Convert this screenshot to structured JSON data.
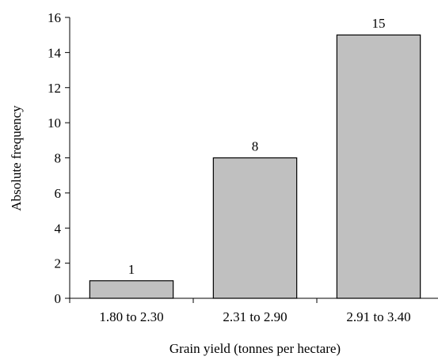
{
  "chart_data": {
    "type": "bar",
    "title": "",
    "xlabel": "Grain yield (tonnes per hectare)",
    "ylabel": "Absolute frequency",
    "categories": [
      "1.80 to 2.30",
      "2.31 to 2.90",
      "2.91 to 3.40"
    ],
    "values": [
      1,
      8,
      15
    ],
    "data_labels": [
      "1",
      "8",
      "15"
    ],
    "ylim": [
      0,
      16
    ],
    "yticks": [
      0,
      2,
      4,
      6,
      8,
      10,
      12,
      14,
      16
    ],
    "ytick_labels": [
      "0",
      "2",
      "4",
      "6",
      "8",
      "10",
      "12",
      "14",
      "16"
    ],
    "grid": false,
    "legend": "none",
    "colors": {
      "bar_fill": "#c0c0c0",
      "bar_stroke": "#000000",
      "axis": "#000000"
    }
  }
}
